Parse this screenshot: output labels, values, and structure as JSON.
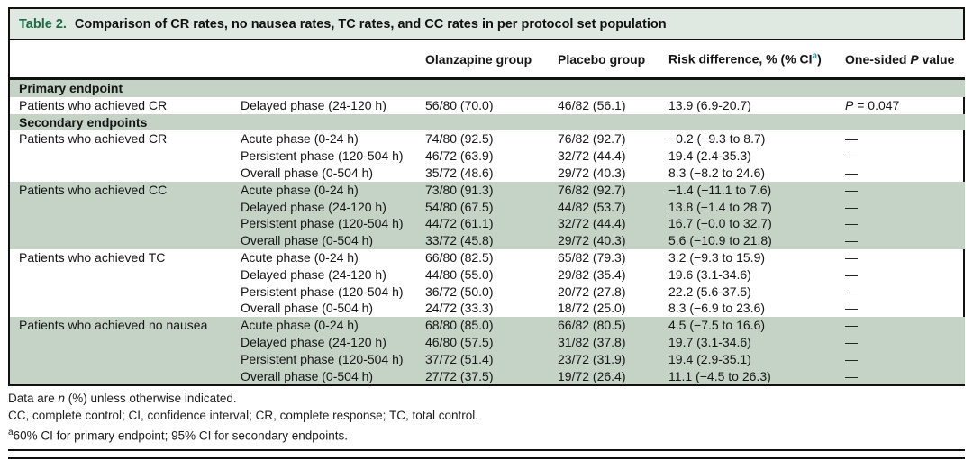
{
  "title": {
    "label": "Table 2.",
    "text": "Comparison of CR rates, no nausea rates, TC rates, and CC rates in per protocol set population"
  },
  "header": {
    "olanzapine": "Olanzapine group",
    "placebo": "Placebo group",
    "risk_prefix": "Risk difference, % (% CI",
    "risk_footnote_marker": "a",
    "risk_suffix": ")",
    "p_prefix": "One-sided ",
    "p_word": "P",
    "p_suffix": " value"
  },
  "rows": [
    {
      "kind": "section",
      "c0": "Primary endpoint"
    },
    {
      "kind": "data",
      "c0": "Patients who achieved CR",
      "c1": "Delayed phase (24-120 h)",
      "c2": "56/80 (70.0)",
      "c3": "46/82 (56.1)",
      "c4": "13.9 (6.9-20.7)",
      "p_sym": "P",
      "p_rest": " = 0.047"
    },
    {
      "kind": "section",
      "c0": "Secondary endpoints"
    },
    {
      "kind": "data",
      "c0": "Patients who achieved CR",
      "c1": "Acute phase (0-24 h)",
      "c2": "74/80 (92.5)",
      "c3": "76/82 (92.7)",
      "c4": "−0.2 (−9.3 to 8.7)",
      "c5": "—"
    },
    {
      "kind": "data",
      "c0": "",
      "c1": "Persistent phase (120-504 h)",
      "c2": "46/72 (63.9)",
      "c3": "32/72 (44.4)",
      "c4": "19.4 (2.4-35.3)",
      "c5": "—"
    },
    {
      "kind": "data",
      "c0": "",
      "c1": "Overall phase (0-504 h)",
      "c2": "35/72 (48.6)",
      "c3": "29/72 (40.3)",
      "c4": "8.3 (−8.2 to 24.6)",
      "c5": "—"
    },
    {
      "kind": "data",
      "c0": "Patients who achieved CC",
      "c1": "Acute phase (0-24 h)",
      "c2": "73/80 (91.3)",
      "c3": "76/82 (92.7)",
      "c4": "−1.4 (−11.1 to 7.6)",
      "c5": "—"
    },
    {
      "kind": "data",
      "c0": "",
      "c1": "Delayed phase (24-120 h)",
      "c2": "54/80 (67.5)",
      "c3": "44/82 (53.7)",
      "c4": "13.8 (−1.4 to 28.7)",
      "c5": "—"
    },
    {
      "kind": "data",
      "c0": "",
      "c1": "Persistent phase (120-504 h)",
      "c2": "44/72 (61.1)",
      "c3": "32/72 (44.4)",
      "c4": "16.7 (−0.0 to 32.7)",
      "c5": "—"
    },
    {
      "kind": "data",
      "c0": "",
      "c1": "Overall phase (0-504 h)",
      "c2": "33/72 (45.8)",
      "c3": "29/72 (40.3)",
      "c4": "5.6 (−10.9 to 21.8)",
      "c5": "—"
    },
    {
      "kind": "data",
      "c0": "Patients who achieved TC",
      "c1": "Acute phase (0-24 h)",
      "c2": "66/80 (82.5)",
      "c3": "65/82 (79.3)",
      "c4": "3.2 (−9.3 to 15.9)",
      "c5": "—"
    },
    {
      "kind": "data",
      "c0": "",
      "c1": "Delayed phase (24-120 h)",
      "c2": "44/80 (55.0)",
      "c3": "29/82 (35.4)",
      "c4": "19.6 (3.1-34.6)",
      "c5": "—"
    },
    {
      "kind": "data",
      "c0": "",
      "c1": "Persistent phase (120-504 h)",
      "c2": "36/72 (50.0)",
      "c3": "20/72 (27.8)",
      "c4": "22.2 (5.6-37.5)",
      "c5": "—"
    },
    {
      "kind": "data",
      "c0": "",
      "c1": "Overall phase (0-504 h)",
      "c2": "24/72 (33.3)",
      "c3": "18/72 (25.0)",
      "c4": "8.3 (−6.9 to 23.6)",
      "c5": "—"
    },
    {
      "kind": "data",
      "c0": "Patients who achieved no nausea",
      "c1": "Acute phase (0-24 h)",
      "c2": "68/80 (85.0)",
      "c3": "66/82 (80.5)",
      "c4": "4.5 (−7.5 to 16.6)",
      "c5": "—"
    },
    {
      "kind": "data",
      "c0": "",
      "c1": "Delayed phase (24-120 h)",
      "c2": "46/80 (57.5)",
      "c3": "31/82 (37.8)",
      "c4": "19.7 (3.1-34.6)",
      "c5": "—"
    },
    {
      "kind": "data",
      "c0": "",
      "c1": "Persistent phase (120-504 h)",
      "c2": "37/72 (51.4)",
      "c3": "23/72 (31.9)",
      "c4": "19.4 (2.9-35.1)",
      "c5": "—"
    },
    {
      "kind": "data",
      "c0": "",
      "c1": "Overall phase (0-504 h)",
      "c2": "27/72 (37.5)",
      "c3": "19/72 (26.4)",
      "c4": "11.1 (−4.5 to 26.3)",
      "c5": "—"
    }
  ],
  "footnotes": {
    "line1_prefix": "Data are ",
    "line1_italic": "n",
    "line1_suffix": " (%) unless otherwise indicated.",
    "line2": "CC, complete control; CI, confidence interval; CR, complete response; TC, total control.",
    "line3_marker": "a",
    "line3_text": "60% CI for primary endpoint; 95% CI for secondary endpoints."
  },
  "colors": {
    "table_label_green": "#1a6c44",
    "shaded_row_green": "#c4d3c6",
    "title_bar_green": "#dfe8e1",
    "footnote_marker_teal": "#2a9bab",
    "rule_black": "#111111"
  }
}
